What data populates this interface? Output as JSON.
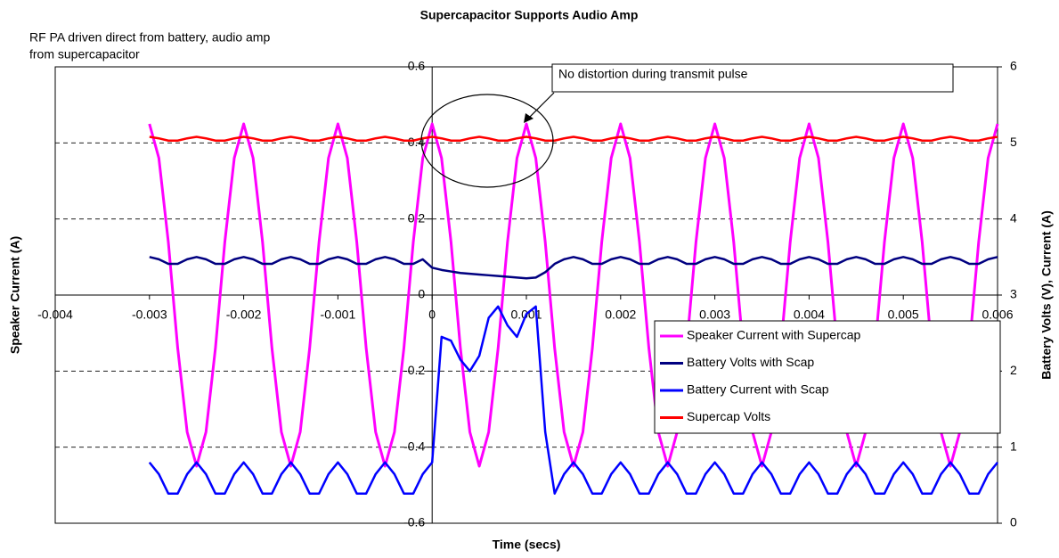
{
  "chart_data": {
    "type": "line",
    "title": "Supercapacitor Supports Audio Amp",
    "subtitle_lines": [
      "RF PA driven direct from battery, audio amp",
      "from supercapacitor"
    ],
    "x_label": "Time (secs)",
    "y_label": "Speaker Current (A)",
    "y2_label": "Battery Volts (V), Current (A)",
    "annotation": "No distortion during transmit pulse",
    "legend": "lower right",
    "grid": true,
    "xlim": [
      -0.004,
      0.006
    ],
    "xticks": [
      -0.004,
      -0.003,
      -0.002,
      -0.001,
      0,
      0.001,
      0.002,
      0.003,
      0.004,
      0.005,
      0.006
    ],
    "ylim": [
      -0.6,
      0.6
    ],
    "yticks": [
      -0.6,
      -0.4,
      -0.2,
      0,
      0.2,
      0.4,
      0.6
    ],
    "y2lim": [
      0,
      6
    ],
    "y2ticks": [
      0,
      1,
      2,
      3,
      4,
      5,
      6
    ],
    "x": [
      -0.003,
      -0.0029,
      -0.0028,
      -0.0027,
      -0.0026,
      -0.0025,
      -0.0024,
      -0.0023,
      -0.0022,
      -0.0021,
      -0.002,
      -0.0019,
      -0.0018,
      -0.0017,
      -0.0016,
      -0.0015,
      -0.0014,
      -0.0013,
      -0.0012,
      -0.0011,
      -0.001,
      -0.0009,
      -0.0008,
      -0.0007,
      -0.0006,
      -0.0005,
      -0.0004,
      -0.0003,
      -0.0002,
      -0.0001,
      0,
      0.0001,
      0.0002,
      0.0003,
      0.0004,
      0.0005,
      0.0006,
      0.0007,
      0.0008,
      0.0009,
      0.001,
      0.0011,
      0.0012,
      0.0013,
      0.0014,
      0.0015,
      0.0016,
      0.0017,
      0.0018,
      0.0019,
      0.002,
      0.0021,
      0.0022,
      0.0023,
      0.0024,
      0.0025,
      0.0026,
      0.0027,
      0.0028,
      0.0029,
      0.003,
      0.0031,
      0.0032,
      0.0033,
      0.0034,
      0.0035,
      0.0036,
      0.0037,
      0.0038,
      0.0039,
      0.004,
      0.0041,
      0.0042,
      0.0043,
      0.0044,
      0.0045,
      0.0046,
      0.0047,
      0.0048,
      0.0049,
      0.005,
      0.0051,
      0.0052,
      0.0053,
      0.0054,
      0.0055,
      0.0056,
      0.0057,
      0.0058,
      0.0059,
      0.006
    ],
    "series": [
      {
        "name": "Speaker Current with Supercap",
        "color": "#ff00ff",
        "axis": "y",
        "values": [
          0.45,
          0.36,
          0.14,
          -0.14,
          -0.36,
          -0.45,
          -0.36,
          -0.14,
          0.14,
          0.36,
          0.45,
          0.36,
          0.14,
          -0.14,
          -0.36,
          -0.45,
          -0.36,
          -0.14,
          0.14,
          0.36,
          0.45,
          0.36,
          0.14,
          -0.14,
          -0.36,
          -0.45,
          -0.36,
          -0.14,
          0.14,
          0.36,
          0.45,
          0.36,
          0.14,
          -0.14,
          -0.36,
          -0.45,
          -0.36,
          -0.14,
          0.14,
          0.36,
          0.45,
          0.36,
          0.14,
          -0.14,
          -0.36,
          -0.45,
          -0.36,
          -0.14,
          0.14,
          0.36,
          0.45,
          0.36,
          0.14,
          -0.14,
          -0.36,
          -0.45,
          -0.36,
          -0.14,
          0.14,
          0.36,
          0.45,
          0.36,
          0.14,
          -0.14,
          -0.36,
          -0.45,
          -0.36,
          -0.14,
          0.14,
          0.36,
          0.45,
          0.36,
          0.14,
          -0.14,
          -0.36,
          -0.45,
          -0.36,
          -0.14,
          0.14,
          0.36,
          0.45,
          0.36,
          0.14,
          -0.14,
          -0.36,
          -0.45,
          -0.36,
          -0.14,
          0.14,
          0.36,
          0.45
        ]
      },
      {
        "name": "Battery Volts with Scap",
        "color": "#000080",
        "axis": "y2",
        "values": [
          3.5,
          3.47,
          3.41,
          3.41,
          3.47,
          3.5,
          3.47,
          3.41,
          3.41,
          3.47,
          3.5,
          3.47,
          3.41,
          3.41,
          3.47,
          3.5,
          3.47,
          3.41,
          3.41,
          3.47,
          3.5,
          3.47,
          3.41,
          3.41,
          3.47,
          3.5,
          3.47,
          3.41,
          3.41,
          3.47,
          3.36,
          3.33,
          3.31,
          3.29,
          3.28,
          3.27,
          3.26,
          3.25,
          3.24,
          3.23,
          3.22,
          3.23,
          3.3,
          3.41,
          3.47,
          3.5,
          3.47,
          3.41,
          3.41,
          3.47,
          3.5,
          3.47,
          3.41,
          3.41,
          3.47,
          3.5,
          3.47,
          3.41,
          3.41,
          3.47,
          3.5,
          3.47,
          3.41,
          3.41,
          3.47,
          3.5,
          3.47,
          3.41,
          3.41,
          3.47,
          3.5,
          3.47,
          3.41,
          3.41,
          3.47,
          3.5,
          3.47,
          3.41,
          3.41,
          3.47,
          3.5,
          3.47,
          3.41,
          3.41,
          3.47,
          3.5,
          3.47,
          3.41,
          3.41,
          3.47,
          3.5
        ]
      },
      {
        "name": "Battery Current with Scap",
        "color": "#0000ff",
        "axis": "y2",
        "values": [
          0.8,
          0.645,
          0.39,
          0.39,
          0.645,
          0.8,
          0.645,
          0.39,
          0.39,
          0.645,
          0.8,
          0.645,
          0.39,
          0.39,
          0.645,
          0.8,
          0.645,
          0.39,
          0.39,
          0.645,
          0.8,
          0.645,
          0.39,
          0.39,
          0.645,
          0.8,
          0.645,
          0.39,
          0.39,
          0.645,
          0.8,
          2.45,
          2.4,
          2.15,
          2.0,
          2.2,
          2.7,
          2.85,
          2.6,
          2.45,
          2.75,
          2.85,
          1.2,
          0.39,
          0.645,
          0.8,
          0.645,
          0.39,
          0.39,
          0.645,
          0.8,
          0.645,
          0.39,
          0.39,
          0.645,
          0.8,
          0.645,
          0.39,
          0.39,
          0.645,
          0.8,
          0.645,
          0.39,
          0.39,
          0.645,
          0.8,
          0.645,
          0.39,
          0.39,
          0.645,
          0.8,
          0.645,
          0.39,
          0.39,
          0.645,
          0.8,
          0.645,
          0.39,
          0.39,
          0.645,
          0.8,
          0.645,
          0.39,
          0.39,
          0.645,
          0.8,
          0.645,
          0.39,
          0.39,
          0.645,
          0.8
        ]
      },
      {
        "name": "Supercap Volts",
        "color": "#ff0000",
        "axis": "y2",
        "values": [
          5.08,
          5.06,
          5.03,
          5.03,
          5.06,
          5.08,
          5.06,
          5.03,
          5.03,
          5.06,
          5.08,
          5.06,
          5.03,
          5.03,
          5.06,
          5.08,
          5.06,
          5.03,
          5.03,
          5.06,
          5.08,
          5.06,
          5.03,
          5.03,
          5.06,
          5.08,
          5.06,
          5.03,
          5.03,
          5.06,
          5.08,
          5.06,
          5.03,
          5.03,
          5.06,
          5.08,
          5.06,
          5.03,
          5.03,
          5.06,
          5.08,
          5.06,
          5.03,
          5.03,
          5.06,
          5.08,
          5.06,
          5.03,
          5.03,
          5.06,
          5.08,
          5.06,
          5.03,
          5.03,
          5.06,
          5.08,
          5.06,
          5.03,
          5.03,
          5.06,
          5.08,
          5.06,
          5.03,
          5.03,
          5.06,
          5.08,
          5.06,
          5.03,
          5.03,
          5.06,
          5.08,
          5.06,
          5.03,
          5.03,
          5.06,
          5.08,
          5.06,
          5.03,
          5.03,
          5.06,
          5.08,
          5.06,
          5.03,
          5.03,
          5.06,
          5.08,
          5.06,
          5.03,
          5.03,
          5.06,
          5.08
        ]
      }
    ]
  }
}
